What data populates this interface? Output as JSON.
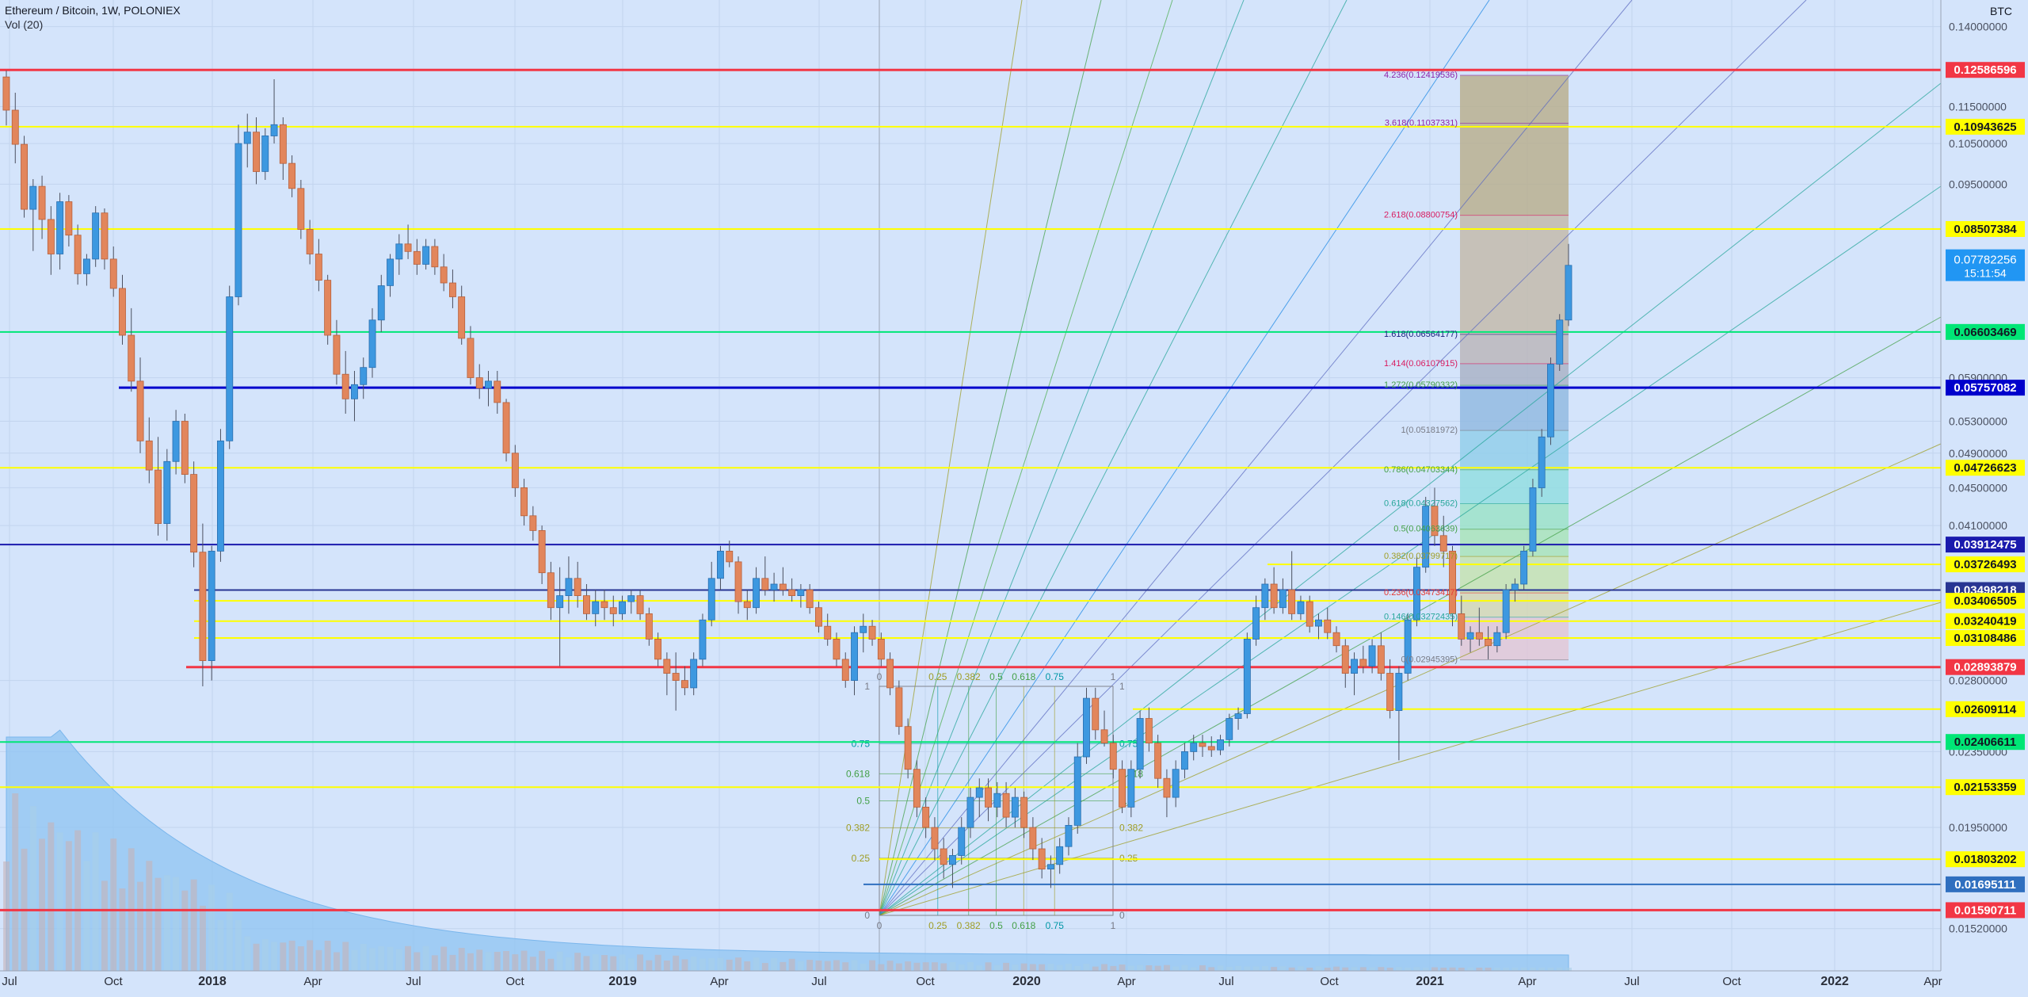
{
  "header": {
    "title": "Ethereum / Bitcoin, 1W, POLONIEX",
    "volume_label": "Vol (20)",
    "unit": "BTC"
  },
  "chart_data": {
    "type": "candlestick",
    "symbol": "ETH/BTC",
    "interval": "1W",
    "exchange": "POLONIEX",
    "y_scale": "log",
    "ylim": [
      0.0137,
      0.1495
    ],
    "grid": true,
    "x_ticks": [
      "Jul",
      "Oct",
      "2018",
      "Apr",
      "Jul",
      "Oct",
      "2019",
      "Apr",
      "Jul",
      "Oct",
      "2020",
      "Apr",
      "Jul",
      "Oct",
      "2021",
      "Apr",
      "Jul",
      "Oct",
      "2022",
      "Apr"
    ],
    "y_ticks": [
      "0.14000000",
      "0.11500000",
      "0.10500000",
      "0.09500000",
      "0.05900000",
      "0.05300000",
      "0.04900000",
      "0.04500000",
      "0.04100000",
      "0.02800000",
      "0.02350000",
      "0.01950000",
      "0.01520000"
    ],
    "last_price": {
      "value": "0.07782256",
      "countdown": "15:11:54"
    },
    "horizontal_levels": [
      {
        "value": "0.12586596",
        "color": "#f23645"
      },
      {
        "value": "0.10943625",
        "color": "#ffff00"
      },
      {
        "value": "0.08507384",
        "color": "#ffff00"
      },
      {
        "value": "0.06603469",
        "color": "#00e676"
      },
      {
        "value": "0.05757082",
        "color": "#0000cc"
      },
      {
        "value": "0.04726623",
        "color": "#ffff00"
      },
      {
        "value": "0.03912475",
        "color": "#1a1aad"
      },
      {
        "value": "0.03726493",
        "color": "#ffff00"
      },
      {
        "value": "0.03498218",
        "color": "#283593"
      },
      {
        "value": "0.03406505",
        "color": "#ffff00"
      },
      {
        "value": "0.03240419",
        "color": "#ffff00"
      },
      {
        "value": "0.03108486",
        "color": "#ffff00"
      },
      {
        "value": "0.02893879",
        "color": "#f23645"
      },
      {
        "value": "0.02609114",
        "color": "#ffff00"
      },
      {
        "value": "0.02406611",
        "color": "#00e676"
      },
      {
        "value": "0.02153359",
        "color": "#ffff00"
      },
      {
        "value": "0.01803202",
        "color": "#ffff00"
      },
      {
        "value": "0.01695111",
        "color": "#2f6fbf"
      },
      {
        "value": "0.01590711",
        "color": "#f23645"
      }
    ],
    "fib_extension_labels": [
      {
        "text": "4.236(0.12419536)",
        "color": "#8e24aa",
        "value": 0.12419536
      },
      {
        "text": "3.618(0.11037331)",
        "color": "#8e24aa",
        "value": 0.11037331
      },
      {
        "text": "2.618(0.08800754)",
        "color": "#d81b60",
        "value": 0.08800754
      },
      {
        "text": "1.618(0.06564177)",
        "color": "#1a237e",
        "value": 0.06564177
      },
      {
        "text": "1.414(0.06107915)",
        "color": "#d81b60",
        "value": 0.06107915
      },
      {
        "text": "1.272(0.05790332)",
        "color": "#43a047",
        "value": 0.05790332
      },
      {
        "text": "1(0.05181972)",
        "color": "#787b86",
        "value": 0.05181972
      },
      {
        "text": "0.786(0.04703344)",
        "color": "#43a047",
        "value": 0.04703344
      },
      {
        "text": "0.618(0.04327562)",
        "color": "#26a69a",
        "value": 0.04327562
      },
      {
        "text": "0.5(0.04063639)",
        "color": "#43a047",
        "value": 0.04063639
      },
      {
        "text": "0.382(0.03799717)",
        "color": "#9e9d24",
        "value": 0.03799717
      },
      {
        "text": "0.236(0.03473417)",
        "color": "#e53935",
        "value": 0.03473417
      },
      {
        "text": "0.146(0.03272435)",
        "color": "#26a69a",
        "value": 0.03272435
      },
      {
        "text": "0(0.02945395)",
        "color": "#787b86",
        "value": 0.02945395
      }
    ],
    "gann_box_labels": {
      "left": [
        "1",
        "0.75",
        "0.618",
        "0.5",
        "0.382",
        "0.25",
        "0"
      ],
      "right": [
        "1",
        "0.75",
        "0.618",
        "0.5",
        "0.382",
        "0.25",
        "0"
      ],
      "top": [
        "0",
        "0.25",
        "0.382",
        "0.5",
        "0.618",
        "0.75",
        "1"
      ],
      "bottom": [
        "0",
        "0.25",
        "0.382",
        "0.5",
        "0.618",
        "0.75",
        "1"
      ]
    },
    "candles_ohlc": [
      [
        0.1237,
        0.1257,
        0.1098,
        0.114
      ],
      [
        0.114,
        0.119,
        0.1,
        0.1048
      ],
      [
        0.1048,
        0.107,
        0.0875,
        0.0893
      ],
      [
        0.0893,
        0.0962,
        0.0806,
        0.0945
      ],
      [
        0.0945,
        0.097,
        0.083,
        0.0871
      ],
      [
        0.0871,
        0.09,
        0.076,
        0.08
      ],
      [
        0.08,
        0.093,
        0.077,
        0.091
      ],
      [
        0.091,
        0.0925,
        0.0815,
        0.0838
      ],
      [
        0.0838,
        0.086,
        0.0742,
        0.0762
      ],
      [
        0.0762,
        0.08,
        0.074,
        0.079
      ],
      [
        0.079,
        0.09,
        0.0775,
        0.0885
      ],
      [
        0.0885,
        0.0895,
        0.077,
        0.079
      ],
      [
        0.079,
        0.0815,
        0.072,
        0.0735
      ],
      [
        0.0735,
        0.076,
        0.064,
        0.0655
      ],
      [
        0.0655,
        0.07,
        0.057,
        0.0585
      ],
      [
        0.0585,
        0.062,
        0.049,
        0.0505
      ],
      [
        0.0505,
        0.0535,
        0.0455,
        0.047
      ],
      [
        0.047,
        0.051,
        0.04,
        0.0412
      ],
      [
        0.0412,
        0.0495,
        0.0395,
        0.048
      ],
      [
        0.048,
        0.0545,
        0.0465,
        0.053
      ],
      [
        0.053,
        0.054,
        0.0455,
        0.0465
      ],
      [
        0.0465,
        0.048,
        0.037,
        0.0384
      ],
      [
        0.0384,
        0.0412,
        0.0276,
        0.0294
      ],
      [
        0.0294,
        0.039,
        0.028,
        0.0385
      ],
      [
        0.0385,
        0.052,
        0.0375,
        0.0505
      ],
      [
        0.0505,
        0.074,
        0.0495,
        0.072
      ],
      [
        0.072,
        0.11,
        0.0705,
        0.105
      ],
      [
        0.105,
        0.113,
        0.099,
        0.108
      ],
      [
        0.108,
        0.112,
        0.095,
        0.098
      ],
      [
        0.098,
        0.109,
        0.096,
        0.107
      ],
      [
        0.107,
        0.123,
        0.105,
        0.11
      ],
      [
        0.11,
        0.112,
        0.096,
        0.1
      ],
      [
        0.1,
        0.102,
        0.092,
        0.094
      ],
      [
        0.094,
        0.096,
        0.083,
        0.085
      ],
      [
        0.085,
        0.087,
        0.078,
        0.08
      ],
      [
        0.08,
        0.083,
        0.073,
        0.075
      ],
      [
        0.075,
        0.076,
        0.064,
        0.0655
      ],
      [
        0.0655,
        0.068,
        0.058,
        0.0595
      ],
      [
        0.0595,
        0.063,
        0.054,
        0.056
      ],
      [
        0.056,
        0.06,
        0.053,
        0.058
      ],
      [
        0.058,
        0.062,
        0.056,
        0.0605
      ],
      [
        0.0605,
        0.07,
        0.059,
        0.068
      ],
      [
        0.068,
        0.076,
        0.066,
        0.074
      ],
      [
        0.074,
        0.08,
        0.072,
        0.079
      ],
      [
        0.079,
        0.084,
        0.076,
        0.082
      ],
      [
        0.082,
        0.086,
        0.079,
        0.0805
      ],
      [
        0.0805,
        0.083,
        0.076,
        0.078
      ],
      [
        0.078,
        0.083,
        0.077,
        0.0815
      ],
      [
        0.0815,
        0.083,
        0.076,
        0.0775
      ],
      [
        0.0775,
        0.08,
        0.073,
        0.0745
      ],
      [
        0.0745,
        0.077,
        0.07,
        0.072
      ],
      [
        0.072,
        0.074,
        0.064,
        0.065
      ],
      [
        0.065,
        0.067,
        0.058,
        0.059
      ],
      [
        0.059,
        0.061,
        0.056,
        0.0575
      ],
      [
        0.0575,
        0.06,
        0.055,
        0.0585
      ],
      [
        0.0585,
        0.06,
        0.054,
        0.0555
      ],
      [
        0.0555,
        0.056,
        0.048,
        0.049
      ],
      [
        0.049,
        0.05,
        0.044,
        0.045
      ],
      [
        0.045,
        0.046,
        0.041,
        0.042
      ],
      [
        0.042,
        0.043,
        0.0395,
        0.0405
      ],
      [
        0.0405,
        0.041,
        0.0355,
        0.0365
      ],
      [
        0.0365,
        0.0375,
        0.0325,
        0.0335
      ],
      [
        0.0335,
        0.037,
        0.029,
        0.0345
      ],
      [
        0.0345,
        0.038,
        0.033,
        0.036
      ],
      [
        0.036,
        0.0375,
        0.0335,
        0.0345
      ],
      [
        0.0345,
        0.0355,
        0.0325,
        0.033
      ],
      [
        0.033,
        0.035,
        0.032,
        0.034
      ],
      [
        0.034,
        0.035,
        0.0325,
        0.0335
      ],
      [
        0.0335,
        0.0345,
        0.032,
        0.033
      ],
      [
        0.033,
        0.0345,
        0.0325,
        0.034
      ],
      [
        0.034,
        0.035,
        0.033,
        0.0345
      ],
      [
        0.0345,
        0.035,
        0.0325,
        0.033
      ],
      [
        0.033,
        0.0335,
        0.0305,
        0.031
      ],
      [
        0.031,
        0.0315,
        0.029,
        0.0295
      ],
      [
        0.0295,
        0.03,
        0.027,
        0.0285
      ],
      [
        0.0285,
        0.03,
        0.026,
        0.028
      ],
      [
        0.028,
        0.029,
        0.027,
        0.0275
      ],
      [
        0.0275,
        0.03,
        0.027,
        0.0295
      ],
      [
        0.0295,
        0.033,
        0.029,
        0.0325
      ],
      [
        0.0325,
        0.0375,
        0.032,
        0.036
      ],
      [
        0.036,
        0.039,
        0.035,
        0.0385
      ],
      [
        0.0385,
        0.0395,
        0.037,
        0.0375
      ],
      [
        0.0375,
        0.038,
        0.033,
        0.034
      ],
      [
        0.034,
        0.035,
        0.0325,
        0.0335
      ],
      [
        0.0335,
        0.037,
        0.033,
        0.036
      ],
      [
        0.036,
        0.038,
        0.0345,
        0.035
      ],
      [
        0.035,
        0.0365,
        0.034,
        0.0355
      ],
      [
        0.0355,
        0.037,
        0.0345,
        0.035
      ],
      [
        0.035,
        0.036,
        0.034,
        0.0345
      ],
      [
        0.0345,
        0.0355,
        0.0335,
        0.035
      ],
      [
        0.035,
        0.0355,
        0.033,
        0.0335
      ],
      [
        0.0335,
        0.034,
        0.0315,
        0.032
      ],
      [
        0.032,
        0.033,
        0.0305,
        0.031
      ],
      [
        0.031,
        0.0315,
        0.029,
        0.0295
      ],
      [
        0.0295,
        0.03,
        0.0275,
        0.028
      ],
      [
        0.028,
        0.032,
        0.027,
        0.0315
      ],
      [
        0.0315,
        0.033,
        0.03,
        0.032
      ],
      [
        0.032,
        0.0325,
        0.0305,
        0.031
      ],
      [
        0.031,
        0.0315,
        0.029,
        0.0295
      ],
      [
        0.0295,
        0.03,
        0.027,
        0.0275
      ],
      [
        0.0275,
        0.028,
        0.0245,
        0.025
      ],
      [
        0.025,
        0.0255,
        0.022,
        0.0225
      ],
      [
        0.0225,
        0.023,
        0.02,
        0.0205
      ],
      [
        0.0205,
        0.021,
        0.019,
        0.0195
      ],
      [
        0.0195,
        0.02,
        0.018,
        0.0185
      ],
      [
        0.0185,
        0.019,
        0.0172,
        0.0178
      ],
      [
        0.0178,
        0.0185,
        0.0168,
        0.0182
      ],
      [
        0.0182,
        0.02,
        0.0178,
        0.0195
      ],
      [
        0.0195,
        0.0215,
        0.019,
        0.021
      ],
      [
        0.021,
        0.022,
        0.02,
        0.0215
      ],
      [
        0.0215,
        0.022,
        0.0198,
        0.0205
      ],
      [
        0.0205,
        0.0218,
        0.02,
        0.0212
      ],
      [
        0.0212,
        0.0218,
        0.0195,
        0.02
      ],
      [
        0.02,
        0.0215,
        0.0195,
        0.021
      ],
      [
        0.021,
        0.0213,
        0.019,
        0.0195
      ],
      [
        0.0195,
        0.02,
        0.018,
        0.0185
      ],
      [
        0.0185,
        0.019,
        0.0172,
        0.0176
      ],
      [
        0.0176,
        0.0182,
        0.0168,
        0.0178
      ],
      [
        0.0178,
        0.019,
        0.0174,
        0.0186
      ],
      [
        0.0186,
        0.02,
        0.0182,
        0.0196
      ],
      [
        0.0196,
        0.024,
        0.0192,
        0.0232
      ],
      [
        0.0232,
        0.0275,
        0.0228,
        0.0268
      ],
      [
        0.0268,
        0.0275,
        0.0242,
        0.0248
      ],
      [
        0.0248,
        0.026,
        0.0238,
        0.024
      ],
      [
        0.024,
        0.0245,
        0.022,
        0.0225
      ],
      [
        0.0225,
        0.023,
        0.0202,
        0.0205
      ],
      [
        0.0205,
        0.023,
        0.02,
        0.0225
      ],
      [
        0.0225,
        0.026,
        0.022,
        0.0255
      ],
      [
        0.0255,
        0.0262,
        0.0235,
        0.024
      ],
      [
        0.024,
        0.0245,
        0.0215,
        0.022
      ],
      [
        0.022,
        0.0225,
        0.02,
        0.021
      ],
      [
        0.021,
        0.023,
        0.0205,
        0.0225
      ],
      [
        0.0225,
        0.024,
        0.022,
        0.0235
      ],
      [
        0.0235,
        0.0245,
        0.023,
        0.024
      ],
      [
        0.024,
        0.0245,
        0.0232,
        0.0238
      ],
      [
        0.0238,
        0.0244,
        0.0232,
        0.0236
      ],
      [
        0.0236,
        0.0245,
        0.0233,
        0.0242
      ],
      [
        0.0242,
        0.0258,
        0.0238,
        0.0255
      ],
      [
        0.0255,
        0.0262,
        0.0248,
        0.0258
      ],
      [
        0.0258,
        0.0315,
        0.0255,
        0.031
      ],
      [
        0.031,
        0.0345,
        0.0305,
        0.0335
      ],
      [
        0.0335,
        0.036,
        0.0325,
        0.0355
      ],
      [
        0.0355,
        0.037,
        0.033,
        0.0335
      ],
      [
        0.0335,
        0.036,
        0.033,
        0.035
      ],
      [
        0.035,
        0.0385,
        0.0325,
        0.033
      ],
      [
        0.033,
        0.0345,
        0.0325,
        0.034
      ],
      [
        0.034,
        0.0345,
        0.0315,
        0.032
      ],
      [
        0.032,
        0.033,
        0.031,
        0.0325
      ],
      [
        0.0325,
        0.0335,
        0.031,
        0.0315
      ],
      [
        0.0315,
        0.032,
        0.03,
        0.0305
      ],
      [
        0.0305,
        0.031,
        0.0275,
        0.0285
      ],
      [
        0.0285,
        0.03,
        0.027,
        0.0295
      ],
      [
        0.0295,
        0.0305,
        0.0285,
        0.029
      ],
      [
        0.029,
        0.031,
        0.0285,
        0.0305
      ],
      [
        0.0305,
        0.0315,
        0.028,
        0.0285
      ],
      [
        0.0285,
        0.0295,
        0.0255,
        0.026
      ],
      [
        0.026,
        0.029,
        0.023,
        0.0285
      ],
      [
        0.0285,
        0.033,
        0.028,
        0.0325
      ],
      [
        0.0325,
        0.038,
        0.032,
        0.037
      ],
      [
        0.037,
        0.044,
        0.0365,
        0.043
      ],
      [
        0.043,
        0.045,
        0.039,
        0.04
      ],
      [
        0.04,
        0.042,
        0.037,
        0.0385
      ],
      [
        0.0385,
        0.039,
        0.032,
        0.033
      ],
      [
        0.033,
        0.0345,
        0.0305,
        0.031
      ],
      [
        0.031,
        0.032,
        0.03,
        0.0315
      ],
      [
        0.0315,
        0.0335,
        0.0305,
        0.031
      ],
      [
        0.031,
        0.032,
        0.0295,
        0.0305
      ],
      [
        0.0305,
        0.032,
        0.03,
        0.0315
      ],
      [
        0.0315,
        0.0355,
        0.031,
        0.035
      ],
      [
        0.035,
        0.036,
        0.034,
        0.0355
      ],
      [
        0.0355,
        0.039,
        0.035,
        0.0385
      ],
      [
        0.0385,
        0.046,
        0.038,
        0.045
      ],
      [
        0.045,
        0.052,
        0.044,
        0.051
      ],
      [
        0.051,
        0.062,
        0.05,
        0.061
      ],
      [
        0.061,
        0.069,
        0.06,
        0.068
      ],
      [
        0.068,
        0.082,
        0.067,
        0.0778
      ]
    ]
  }
}
